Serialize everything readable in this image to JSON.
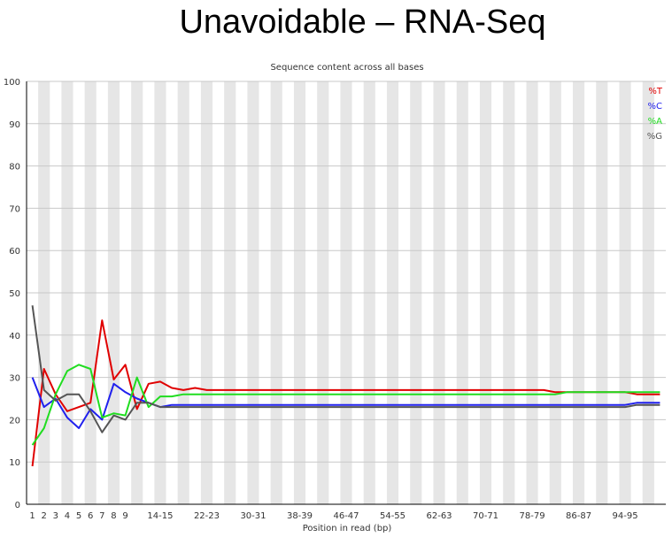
{
  "slide": {
    "title": "Unavoidable – RNA-Seq"
  },
  "chart_data": {
    "type": "line",
    "title": "Sequence content across all bases",
    "xlabel": "Position in read (bp)",
    "ylabel": "",
    "ylim": [
      0,
      100
    ],
    "yticks": [
      0,
      10,
      20,
      30,
      40,
      50,
      60,
      70,
      80,
      90,
      100
    ],
    "grid": true,
    "legend": "top-right",
    "categories": [
      "1",
      "2",
      "3",
      "4",
      "5",
      "6",
      "7",
      "8",
      "9",
      "10-11",
      "12-13",
      "14-15",
      "16-17",
      "18-19",
      "20-21",
      "22-23",
      "24-25",
      "26-27",
      "28-29",
      "30-31",
      "32-33",
      "34-35",
      "36-37",
      "38-39",
      "40-41",
      "42-43",
      "44-45",
      "46-47",
      "48-49",
      "50-51",
      "52-53",
      "54-55",
      "56-57",
      "58-59",
      "60-61",
      "62-63",
      "64-65",
      "66-67",
      "68-69",
      "70-71",
      "72-73",
      "74-75",
      "76-77",
      "78-79",
      "80-81",
      "82-83",
      "84-85",
      "86-87",
      "88-89",
      "90-91",
      "92-93",
      "94-95",
      "96-97",
      "98-99",
      "100-101"
    ],
    "xtick_labels": [
      "1",
      "2",
      "3",
      "4",
      "5",
      "6",
      "7",
      "8",
      "9",
      "",
      "",
      "14-15",
      "",
      "",
      "",
      "22-23",
      "",
      "",
      "",
      "30-31",
      "",
      "",
      "",
      "38-39",
      "",
      "",
      "",
      "46-47",
      "",
      "",
      "",
      "54-55",
      "",
      "",
      "",
      "62-63",
      "",
      "",
      "",
      "70-71",
      "",
      "",
      "",
      "78-79",
      "",
      "",
      "",
      "86-87",
      "",
      "",
      "",
      "94-95",
      "",
      "",
      ""
    ],
    "series": [
      {
        "name": "%T",
        "color": "#e00000",
        "values": [
          9,
          32,
          26,
          22,
          23,
          24,
          43.5,
          29.5,
          33,
          22.5,
          28.5,
          29,
          27.5,
          27,
          27.5,
          27,
          27,
          27,
          27,
          27,
          27,
          27,
          27,
          27,
          27,
          27,
          27,
          27,
          27,
          27,
          27,
          27,
          27,
          27,
          27,
          27,
          27,
          27,
          27,
          27,
          27,
          27,
          27,
          27,
          27,
          26.5,
          26.5,
          26.5,
          26.5,
          26.5,
          26.5,
          26.5,
          26,
          26,
          26
        ]
      },
      {
        "name": "%C",
        "color": "#2020ee",
        "values": [
          30,
          23,
          25,
          20.5,
          18,
          22.5,
          20,
          28.5,
          26.5,
          25,
          24,
          23,
          23.5,
          23.5,
          23.5,
          23.5,
          23.5,
          23.5,
          23.5,
          23.5,
          23.5,
          23.5,
          23.5,
          23.5,
          23.5,
          23.5,
          23.5,
          23.5,
          23.5,
          23.5,
          23.5,
          23.5,
          23.5,
          23.5,
          23.5,
          23.5,
          23.5,
          23.5,
          23.5,
          23.5,
          23.5,
          23.5,
          23.5,
          23.5,
          23.5,
          23.5,
          23.5,
          23.5,
          23.5,
          23.5,
          23.5,
          23.5,
          24,
          24,
          24
        ]
      },
      {
        "name": "%A",
        "color": "#20dd20",
        "values": [
          14,
          18,
          26,
          31.5,
          33,
          32,
          20.5,
          21.5,
          21,
          30,
          23,
          25.5,
          25.5,
          26,
          26,
          26,
          26,
          26,
          26,
          26,
          26,
          26,
          26,
          26,
          26,
          26,
          26,
          26,
          26,
          26,
          26,
          26,
          26,
          26,
          26,
          26,
          26,
          26,
          26,
          26,
          26,
          26,
          26,
          26,
          26,
          26,
          26.5,
          26.5,
          26.5,
          26.5,
          26.5,
          26.5,
          26.5,
          26.5,
          26.5
        ]
      },
      {
        "name": "%G",
        "color": "#555555",
        "values": [
          47,
          27,
          24.5,
          26,
          26,
          22,
          17,
          21,
          20,
          24,
          24,
          23,
          23,
          23,
          23,
          23,
          23,
          23,
          23,
          23,
          23,
          23,
          23,
          23,
          23,
          23,
          23,
          23,
          23,
          23,
          23,
          23,
          23,
          23,
          23,
          23,
          23,
          23,
          23,
          23,
          23,
          23,
          23,
          23,
          23,
          23,
          23,
          23,
          23,
          23,
          23,
          23,
          23.5,
          23.5,
          23.5
        ]
      }
    ]
  }
}
